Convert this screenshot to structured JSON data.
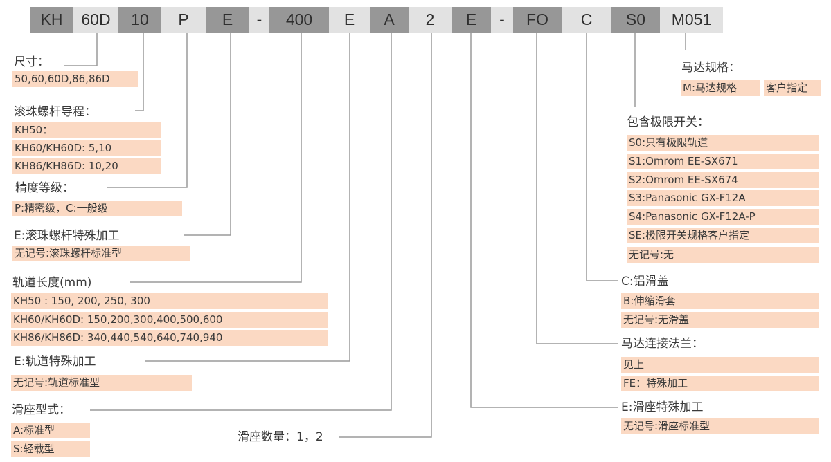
{
  "code_segments": [
    {
      "text": "KH",
      "shade": "dark"
    },
    {
      "text": "60D",
      "shade": "light"
    },
    {
      "text": "10",
      "shade": "dark"
    },
    {
      "text": "P",
      "shade": "light"
    },
    {
      "text": "E",
      "shade": "dark"
    },
    {
      "text": "-",
      "shade": "light"
    },
    {
      "text": "400",
      "shade": "dark"
    },
    {
      "text": "E",
      "shade": "light"
    },
    {
      "text": "A",
      "shade": "dark"
    },
    {
      "text": "2",
      "shade": "light"
    },
    {
      "text": "E",
      "shade": "dark"
    },
    {
      "text": "-",
      "shade": "light"
    },
    {
      "text": "FO",
      "shade": "dark"
    },
    {
      "text": "C",
      "shade": "light"
    },
    {
      "text": "S0",
      "shade": "dark"
    },
    {
      "text": "M051",
      "shade": "light"
    }
  ],
  "colors": {
    "dark_segment": "#979797",
    "light_segment": "#e2e2e2",
    "option_fill": "#fbd9c3",
    "connector": "#9a9a9a"
  },
  "size": {
    "heading": "尺寸：",
    "options": [
      "50,60,60D,86,86D"
    ]
  },
  "lead": {
    "heading": "滚珠螺杆导程：",
    "options": [
      "KH50：",
      "KH60/KH60D: 5,10",
      "KH86/KH86D: 10,20"
    ]
  },
  "precision": {
    "heading": "精度等级：",
    "options": [
      "P:精密级，C:一般级"
    ]
  },
  "screw_special": {
    "heading": "E:滚珠螺杆特殊加工",
    "options": [
      "无记号:滚珠螺杆标准型"
    ]
  },
  "rail_length": {
    "heading": "轨道长度(mm)",
    "options": [
      "KH50 : 150, 200, 250, 300",
      "KH60/KH60D: 150,200,300,400,500,600",
      "KH86/KH86D: 340,440,540,640,740,940"
    ]
  },
  "rail_special": {
    "heading": "E:轨道特殊加工",
    "options": [
      "无记号:轨道标准型"
    ]
  },
  "slider_type": {
    "heading": "滑座型式：",
    "options": [
      "A:标准型",
      "S:轻载型"
    ]
  },
  "slider_count": {
    "heading": "滑座数量：1，2"
  },
  "motor_spec": {
    "heading": "马达规格：",
    "options": [
      "M:马达规格",
      "客户指定"
    ]
  },
  "limit_switch": {
    "heading": "包含极限开关：",
    "options": [
      "S0:只有极限轨道",
      "S1:Omrom EE-SX671",
      "S2:Omrom EE-SX674",
      "S3:Panasonic GX-F12A",
      "S4:Panasonic GX-F12A-P",
      "SE:极限开关规格客户指定",
      "无记号:无"
    ]
  },
  "cover": {
    "heading": "C:铝滑盖",
    "options": [
      "B:伸缩滑套",
      "无记号:无滑盖"
    ]
  },
  "motor_flange": {
    "heading": "马达连接法兰：",
    "options": [
      "见上",
      "FE：特殊加工"
    ]
  },
  "slider_special": {
    "heading": "E:滑座特殊加工",
    "options": [
      "无记号:滑座标准型"
    ]
  }
}
